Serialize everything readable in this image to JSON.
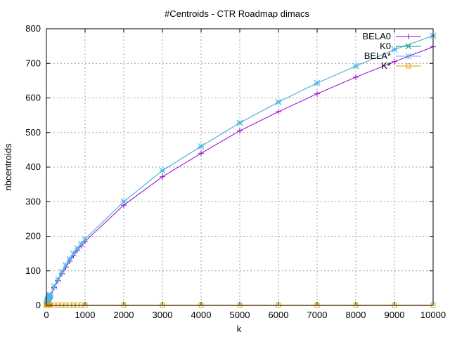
{
  "chart_data": {
    "type": "line",
    "title": "#Centroids - CTR Roadmap dimacs",
    "xlabel": "k",
    "ylabel": "nbcentroids",
    "xlim": [
      0,
      10000
    ],
    "ylim": [
      0,
      800
    ],
    "x_ticks": [
      0,
      1000,
      2000,
      3000,
      4000,
      5000,
      6000,
      7000,
      8000,
      9000,
      10000
    ],
    "y_ticks": [
      0,
      100,
      200,
      300,
      400,
      500,
      600,
      700,
      800
    ],
    "grid": true,
    "legend_position": "top-right",
    "series": [
      {
        "name": "BELA0",
        "color": "#9400d3",
        "marker": "plus",
        "x": [
          1,
          10,
          20,
          30,
          40,
          50,
          60,
          70,
          80,
          90,
          100,
          200,
          300,
          400,
          500,
          600,
          700,
          800,
          900,
          1000,
          2000,
          3000,
          4000,
          5000,
          6000,
          7000,
          8000,
          9000,
          10000
        ],
        "y": [
          1,
          5,
          9,
          12,
          15,
          17,
          20,
          22,
          24,
          26,
          28,
          52,
          72,
          92,
          110,
          128,
          144,
          160,
          172,
          185,
          290,
          372,
          440,
          505,
          560,
          612,
          660,
          705,
          748
        ]
      },
      {
        "name": "K0",
        "color": "#009e73",
        "marker": "x",
        "x": [
          1,
          10,
          20,
          30,
          40,
          50,
          60,
          70,
          80,
          90,
          100,
          200,
          300,
          400,
          500,
          600,
          700,
          800,
          900,
          1000,
          2000,
          3000,
          4000,
          5000,
          6000,
          7000,
          8000,
          9000,
          10000
        ],
        "y": [
          1,
          6,
          10,
          13,
          16,
          19,
          21,
          24,
          26,
          28,
          30,
          55,
          76,
          97,
          116,
          134,
          150,
          165,
          178,
          192,
          300,
          390,
          460,
          528,
          588,
          643,
          692,
          740,
          780
        ]
      },
      {
        "name": "BELA*",
        "color": "#56b4e9",
        "marker": "star",
        "x": [
          1,
          10,
          20,
          30,
          40,
          50,
          60,
          70,
          80,
          90,
          100,
          200,
          300,
          400,
          500,
          600,
          700,
          800,
          900,
          1000,
          2000,
          3000,
          4000,
          5000,
          6000,
          7000,
          8000,
          9000,
          10000
        ],
        "y": [
          1,
          6,
          10,
          13,
          16,
          19,
          21,
          24,
          26,
          28,
          30,
          55,
          76,
          97,
          116,
          134,
          150,
          165,
          178,
          192,
          300,
          390,
          460,
          528,
          588,
          643,
          692,
          740,
          780
        ]
      },
      {
        "name": "K*",
        "color": "#e69f00",
        "marker": "square",
        "x": [
          1,
          10,
          20,
          30,
          40,
          50,
          60,
          70,
          80,
          90,
          100,
          200,
          300,
          400,
          500,
          600,
          700,
          800,
          900,
          1000,
          2000,
          3000,
          4000,
          5000,
          6000,
          7000,
          8000,
          9000,
          10000
        ],
        "y": [
          1,
          1,
          1,
          1,
          1,
          1,
          1,
          1,
          1,
          1,
          1,
          1,
          1,
          1,
          1,
          1,
          1,
          1,
          1,
          1,
          1,
          1,
          1,
          1,
          1,
          1,
          1,
          1,
          1
        ]
      }
    ]
  }
}
